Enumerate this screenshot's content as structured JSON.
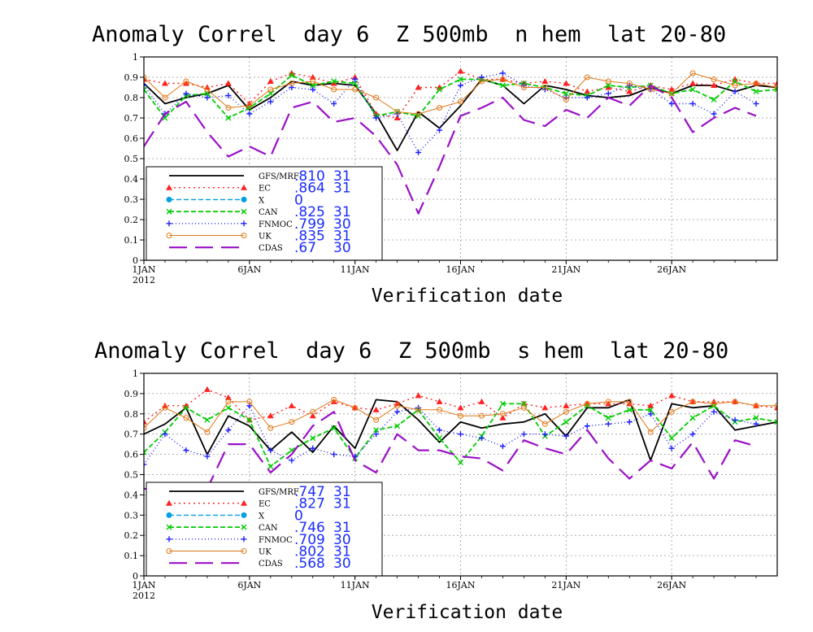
{
  "chart_data": [
    {
      "type": "line",
      "title": "Anomaly Correl  day 6  Z 500mb  n hem  lat 20-80",
      "xlabel": "Verification date",
      "ylabel": "",
      "x_ticks": [
        {
          "day": 1,
          "label": "1JAN",
          "sub": "2012"
        },
        {
          "day": 6,
          "label": "6JAN"
        },
        {
          "day": 11,
          "label": "11JAN"
        },
        {
          "day": 16,
          "label": "16JAN"
        },
        {
          "day": 21,
          "label": "21JAN"
        },
        {
          "day": 26,
          "label": "26JAN"
        }
      ],
      "y_ticks": [
        "0",
        "0.1",
        "0.2",
        "0.3",
        "0.4",
        "0.5",
        "0.6",
        "0.7",
        "0.8",
        "0.9",
        "1"
      ],
      "ylim": [
        0,
        1
      ],
      "xlim": [
        1,
        31
      ],
      "grid": true,
      "legend_position": "bottom-left",
      "series": [
        {
          "name": "GFS/MRF",
          "stat": ".810",
          "count": "31",
          "color": "#000000",
          "dash": "",
          "marker": "none",
          "width": 1.8,
          "values": [
            0.87,
            0.77,
            0.8,
            0.82,
            0.86,
            0.74,
            0.8,
            0.88,
            0.86,
            0.87,
            0.86,
            0.72,
            0.54,
            0.73,
            0.65,
            0.76,
            0.89,
            0.86,
            0.77,
            0.86,
            0.84,
            0.81,
            0.8,
            0.81,
            0.85,
            0.82,
            0.86,
            0.86,
            0.83,
            0.86,
            0.85
          ]
        },
        {
          "name": "EC",
          "stat": ".864",
          "count": "31",
          "color": "#ff2020",
          "dash": "2,4",
          "marker": "triangle",
          "width": 1.4,
          "values": [
            0.89,
            0.87,
            0.87,
            0.85,
            0.87,
            0.77,
            0.88,
            0.92,
            0.9,
            0.87,
            0.9,
            0.72,
            0.7,
            0.85,
            0.85,
            0.93,
            0.89,
            0.89,
            0.87,
            0.88,
            0.87,
            0.83,
            0.85,
            0.83,
            0.86,
            0.84,
            0.87,
            0.86,
            0.89,
            0.87,
            0.87
          ]
        },
        {
          "name": "X",
          "stat": "0",
          "count": "",
          "color": "#00a0e0",
          "dash": "6,3",
          "marker": "circle",
          "width": 1.4,
          "values": []
        },
        {
          "name": "CAN",
          "stat": ".825",
          "count": "31",
          "color": "#00cc00",
          "dash": "6,3",
          "marker": "x",
          "width": 1.8,
          "values": [
            0.84,
            0.7,
            0.81,
            0.82,
            0.7,
            0.75,
            0.82,
            0.91,
            0.86,
            0.88,
            0.87,
            0.71,
            0.73,
            0.71,
            0.84,
            0.89,
            0.89,
            0.86,
            0.87,
            0.85,
            0.82,
            0.81,
            0.86,
            0.85,
            0.86,
            0.82,
            0.84,
            0.79,
            0.88,
            0.83,
            0.84
          ]
        },
        {
          "name": "FNMOC",
          "stat": ".799",
          "count": "30",
          "color": "#2020ff",
          "dash": "1,3",
          "marker": "plus",
          "width": 1.4,
          "values": [
            0.86,
            0.72,
            0.82,
            0.8,
            0.81,
            0.72,
            0.78,
            0.85,
            0.84,
            0.77,
            0.89,
            0.7,
            0.72,
            0.53,
            0.64,
            0.86,
            0.9,
            0.92,
            0.86,
            0.84,
            0.8,
            0.8,
            0.82,
            0.86,
            0.84,
            0.77,
            0.77,
            0.72,
            0.83,
            0.77
          ]
        },
        {
          "name": "UK",
          "stat": ".835",
          "count": "31",
          "color": "#e07818",
          "dash": "",
          "marker": "circle-open",
          "width": 1.0,
          "values": [
            0.9,
            0.8,
            0.88,
            0.84,
            0.75,
            0.76,
            0.84,
            0.87,
            0.88,
            0.84,
            0.84,
            0.8,
            0.73,
            0.72,
            0.75,
            0.78,
            0.88,
            0.89,
            0.85,
            0.85,
            0.79,
            0.9,
            0.88,
            0.87,
            0.84,
            0.82,
            0.92,
            0.89,
            0.86,
            0.87,
            0.85
          ]
        },
        {
          "name": "CDAS",
          "stat": ".67",
          "count": "30",
          "color": "#9a10c8",
          "dash": "22,10",
          "marker": "none",
          "width": 2.2,
          "values": [
            0.56,
            0.72,
            0.78,
            0.63,
            0.51,
            0.56,
            0.51,
            0.75,
            0.78,
            0.68,
            0.7,
            0.61,
            0.47,
            0.23,
            0.46,
            0.71,
            0.75,
            0.8,
            0.69,
            0.66,
            0.74,
            0.7,
            0.8,
            0.76,
            0.86,
            0.8,
            0.63,
            0.7,
            0.75,
            0.71
          ]
        }
      ]
    },
    {
      "type": "line",
      "title": "Anomaly Correl  day 6  Z 500mb  s hem  lat 20-80",
      "xlabel": "Verification date",
      "ylabel": "",
      "x_ticks": [
        {
          "day": 1,
          "label": "1JAN",
          "sub": "2012"
        },
        {
          "day": 6,
          "label": "6JAN"
        },
        {
          "day": 11,
          "label": "11JAN"
        },
        {
          "day": 16,
          "label": "16JAN"
        },
        {
          "day": 21,
          "label": "21JAN"
        },
        {
          "day": 26,
          "label": "26JAN"
        }
      ],
      "y_ticks": [
        "0",
        "0.1",
        "0.2",
        "0.3",
        "0.4",
        "0.5",
        "0.6",
        "0.7",
        "0.8",
        "0.9",
        "1"
      ],
      "ylim": [
        0,
        1
      ],
      "xlim": [
        1,
        31
      ],
      "grid": true,
      "legend_position": "bottom-left",
      "series": [
        {
          "name": "GFS/MRF",
          "stat": ".747",
          "count": "31",
          "color": "#000000",
          "dash": "",
          "marker": "none",
          "width": 1.8,
          "values": [
            0.7,
            0.75,
            0.83,
            0.6,
            0.79,
            0.74,
            0.62,
            0.71,
            0.61,
            0.74,
            0.63,
            0.87,
            0.86,
            0.77,
            0.66,
            0.76,
            0.73,
            0.75,
            0.76,
            0.8,
            0.69,
            0.83,
            0.83,
            0.87,
            0.57,
            0.85,
            0.83,
            0.84,
            0.72,
            0.74,
            0.76
          ]
        },
        {
          "name": "EC",
          "stat": ".827",
          "count": "31",
          "color": "#ff2020",
          "dash": "2,4",
          "marker": "triangle",
          "width": 1.4,
          "values": [
            0.76,
            0.84,
            0.84,
            0.92,
            0.88,
            0.77,
            0.79,
            0.84,
            0.79,
            0.86,
            0.83,
            0.82,
            0.85,
            0.89,
            0.86,
            0.83,
            0.86,
            0.78,
            0.85,
            0.83,
            0.84,
            0.85,
            0.85,
            0.85,
            0.84,
            0.89,
            0.86,
            0.86,
            0.86,
            0.84,
            0.83
          ]
        },
        {
          "name": "X",
          "stat": "0",
          "count": "",
          "color": "#00a0e0",
          "dash": "6,3",
          "marker": "circle",
          "width": 1.4,
          "values": []
        },
        {
          "name": "CAN",
          "stat": ".746",
          "count": "31",
          "color": "#00cc00",
          "dash": "6,3",
          "marker": "x",
          "width": 1.8,
          "values": [
            0.61,
            0.71,
            0.83,
            0.77,
            0.83,
            0.77,
            0.54,
            0.62,
            0.68,
            0.73,
            0.58,
            0.72,
            0.74,
            0.82,
            0.68,
            0.56,
            0.69,
            0.85,
            0.85,
            0.69,
            0.76,
            0.84,
            0.78,
            0.82,
            0.82,
            0.68,
            0.78,
            0.84,
            0.76,
            0.78,
            0.76
          ]
        },
        {
          "name": "FNMOC",
          "stat": ".709",
          "count": "30",
          "color": "#2020ff",
          "dash": "1,3",
          "marker": "plus",
          "width": 1.4,
          "values": [
            0.55,
            0.7,
            0.62,
            0.59,
            0.72,
            0.84,
            0.62,
            0.57,
            0.63,
            0.6,
            0.59,
            0.7,
            0.81,
            0.83,
            0.72,
            0.7,
            0.68,
            0.64,
            0.7,
            0.7,
            0.69,
            0.74,
            0.75,
            0.76,
            0.8,
            0.63,
            0.7,
            0.81,
            0.77,
            0.75
          ]
        },
        {
          "name": "UK",
          "stat": ".802",
          "count": "31",
          "color": "#e07818",
          "dash": "",
          "marker": "circle-open",
          "width": 1.0,
          "values": [
            0.73,
            0.83,
            0.78,
            0.71,
            0.86,
            0.86,
            0.73,
            0.76,
            0.81,
            0.87,
            0.83,
            0.77,
            0.84,
            0.82,
            0.82,
            0.79,
            0.79,
            0.8,
            0.83,
            0.75,
            0.81,
            0.85,
            0.86,
            0.86,
            0.71,
            0.81,
            0.86,
            0.85,
            0.86,
            0.84,
            0.84
          ]
        },
        {
          "name": "CDAS",
          "stat": ".568",
          "count": "30",
          "color": "#9a10c8",
          "dash": "22,10",
          "marker": "none",
          "width": 2.2,
          "values": [
            0.43,
            0.42,
            0.24,
            0.43,
            0.65,
            0.65,
            0.51,
            0.6,
            0.74,
            0.81,
            0.57,
            0.51,
            0.7,
            0.62,
            0.62,
            0.59,
            0.58,
            0.52,
            0.67,
            0.63,
            0.6,
            0.72,
            0.58,
            0.48,
            0.57,
            0.53,
            0.66,
            0.48,
            0.67,
            0.64
          ]
        }
      ]
    }
  ]
}
